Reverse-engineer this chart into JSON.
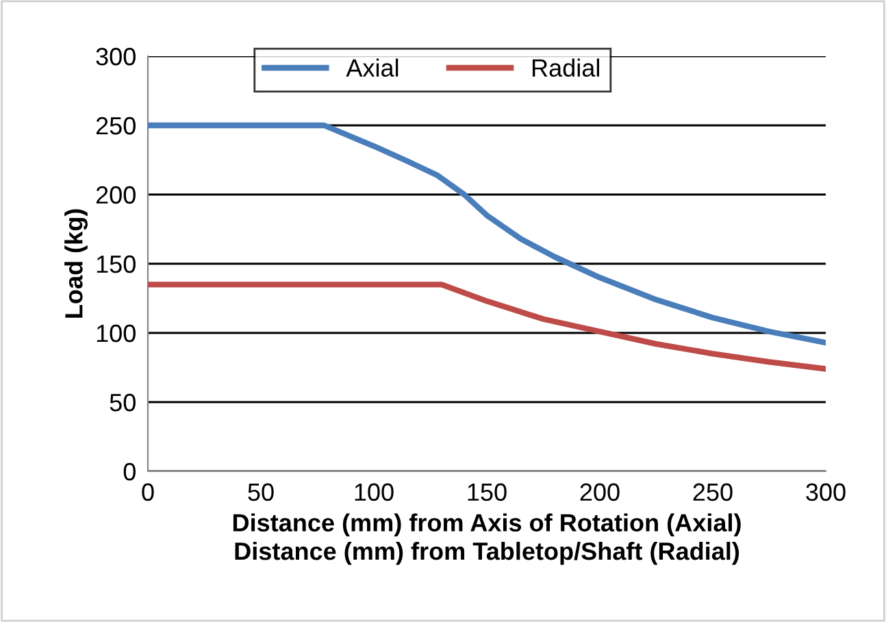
{
  "chart_data": {
    "type": "line",
    "xlabel": "Distance (mm) from Axis of Rotation (Axial)\nDistance (mm) from Tabletop/Shaft (Radial)",
    "ylabel": "Load (kg)",
    "series": [
      {
        "name": "Axial",
        "color": "#4a7ebb",
        "x": [
          0,
          78,
          100,
          115,
          128,
          140,
          150,
          165,
          180,
          200,
          225,
          250,
          275,
          300
        ],
        "values": [
          250,
          250,
          235,
          224,
          214,
          200,
          185,
          168,
          155,
          140,
          124,
          111,
          101,
          93
        ]
      },
      {
        "name": "Radial",
        "color": "#be4b48",
        "x": [
          0,
          130,
          150,
          175,
          200,
          225,
          250,
          275,
          300
        ],
        "values": [
          135,
          135,
          123,
          110,
          101,
          92,
          85,
          79,
          74
        ]
      }
    ],
    "xlim": [
      0,
      300
    ],
    "xticks": [
      0,
      50,
      100,
      150,
      200,
      250,
      300
    ],
    "ylim": [
      0,
      300
    ],
    "yticks": [
      0,
      50,
      100,
      150,
      200,
      250,
      300
    ],
    "grid": "y",
    "legend": "top",
    "marker": "none",
    "line_style": "solid"
  }
}
